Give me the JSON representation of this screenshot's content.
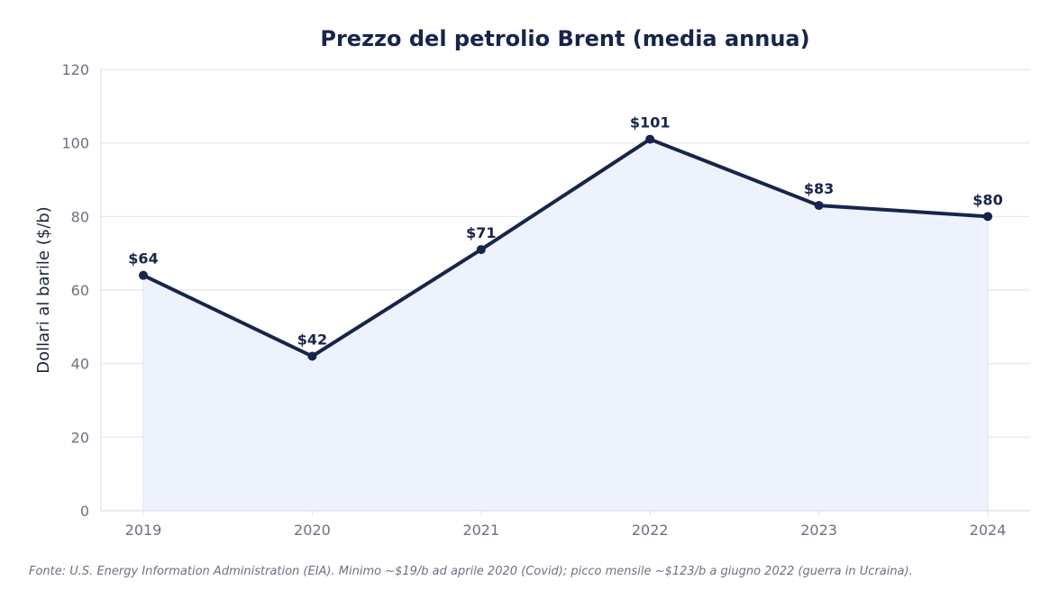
{
  "chart_data": {
    "type": "area",
    "title": "Prezzo del petrolio Brent (media annua)",
    "xlabel": "",
    "ylabel": "Dollari al barile ($/b)",
    "categories": [
      "2019",
      "2020",
      "2021",
      "2022",
      "2023",
      "2024"
    ],
    "series": [
      {
        "values": [
          64,
          42,
          71,
          101,
          83,
          80
        ]
      }
    ],
    "data_labels": [
      "$64",
      "$42",
      "$71",
      "$101",
      "$83",
      "$80"
    ],
    "ylim": [
      0,
      120
    ],
    "yticks": [
      0,
      20,
      40,
      60,
      80,
      100,
      120
    ],
    "grid": true,
    "colors": {
      "line": "#18244b",
      "fill": "#eef2fd",
      "grid": "#e3e7f0",
      "axis": "#d9deea"
    }
  },
  "source_note": "Fonte: U.S. Energy Information Administration (EIA). Minimo ~$19/b ad aprile 2020 (Covid); picco mensile ~$123/b a giugno 2022 (guerra in Ucraina)."
}
